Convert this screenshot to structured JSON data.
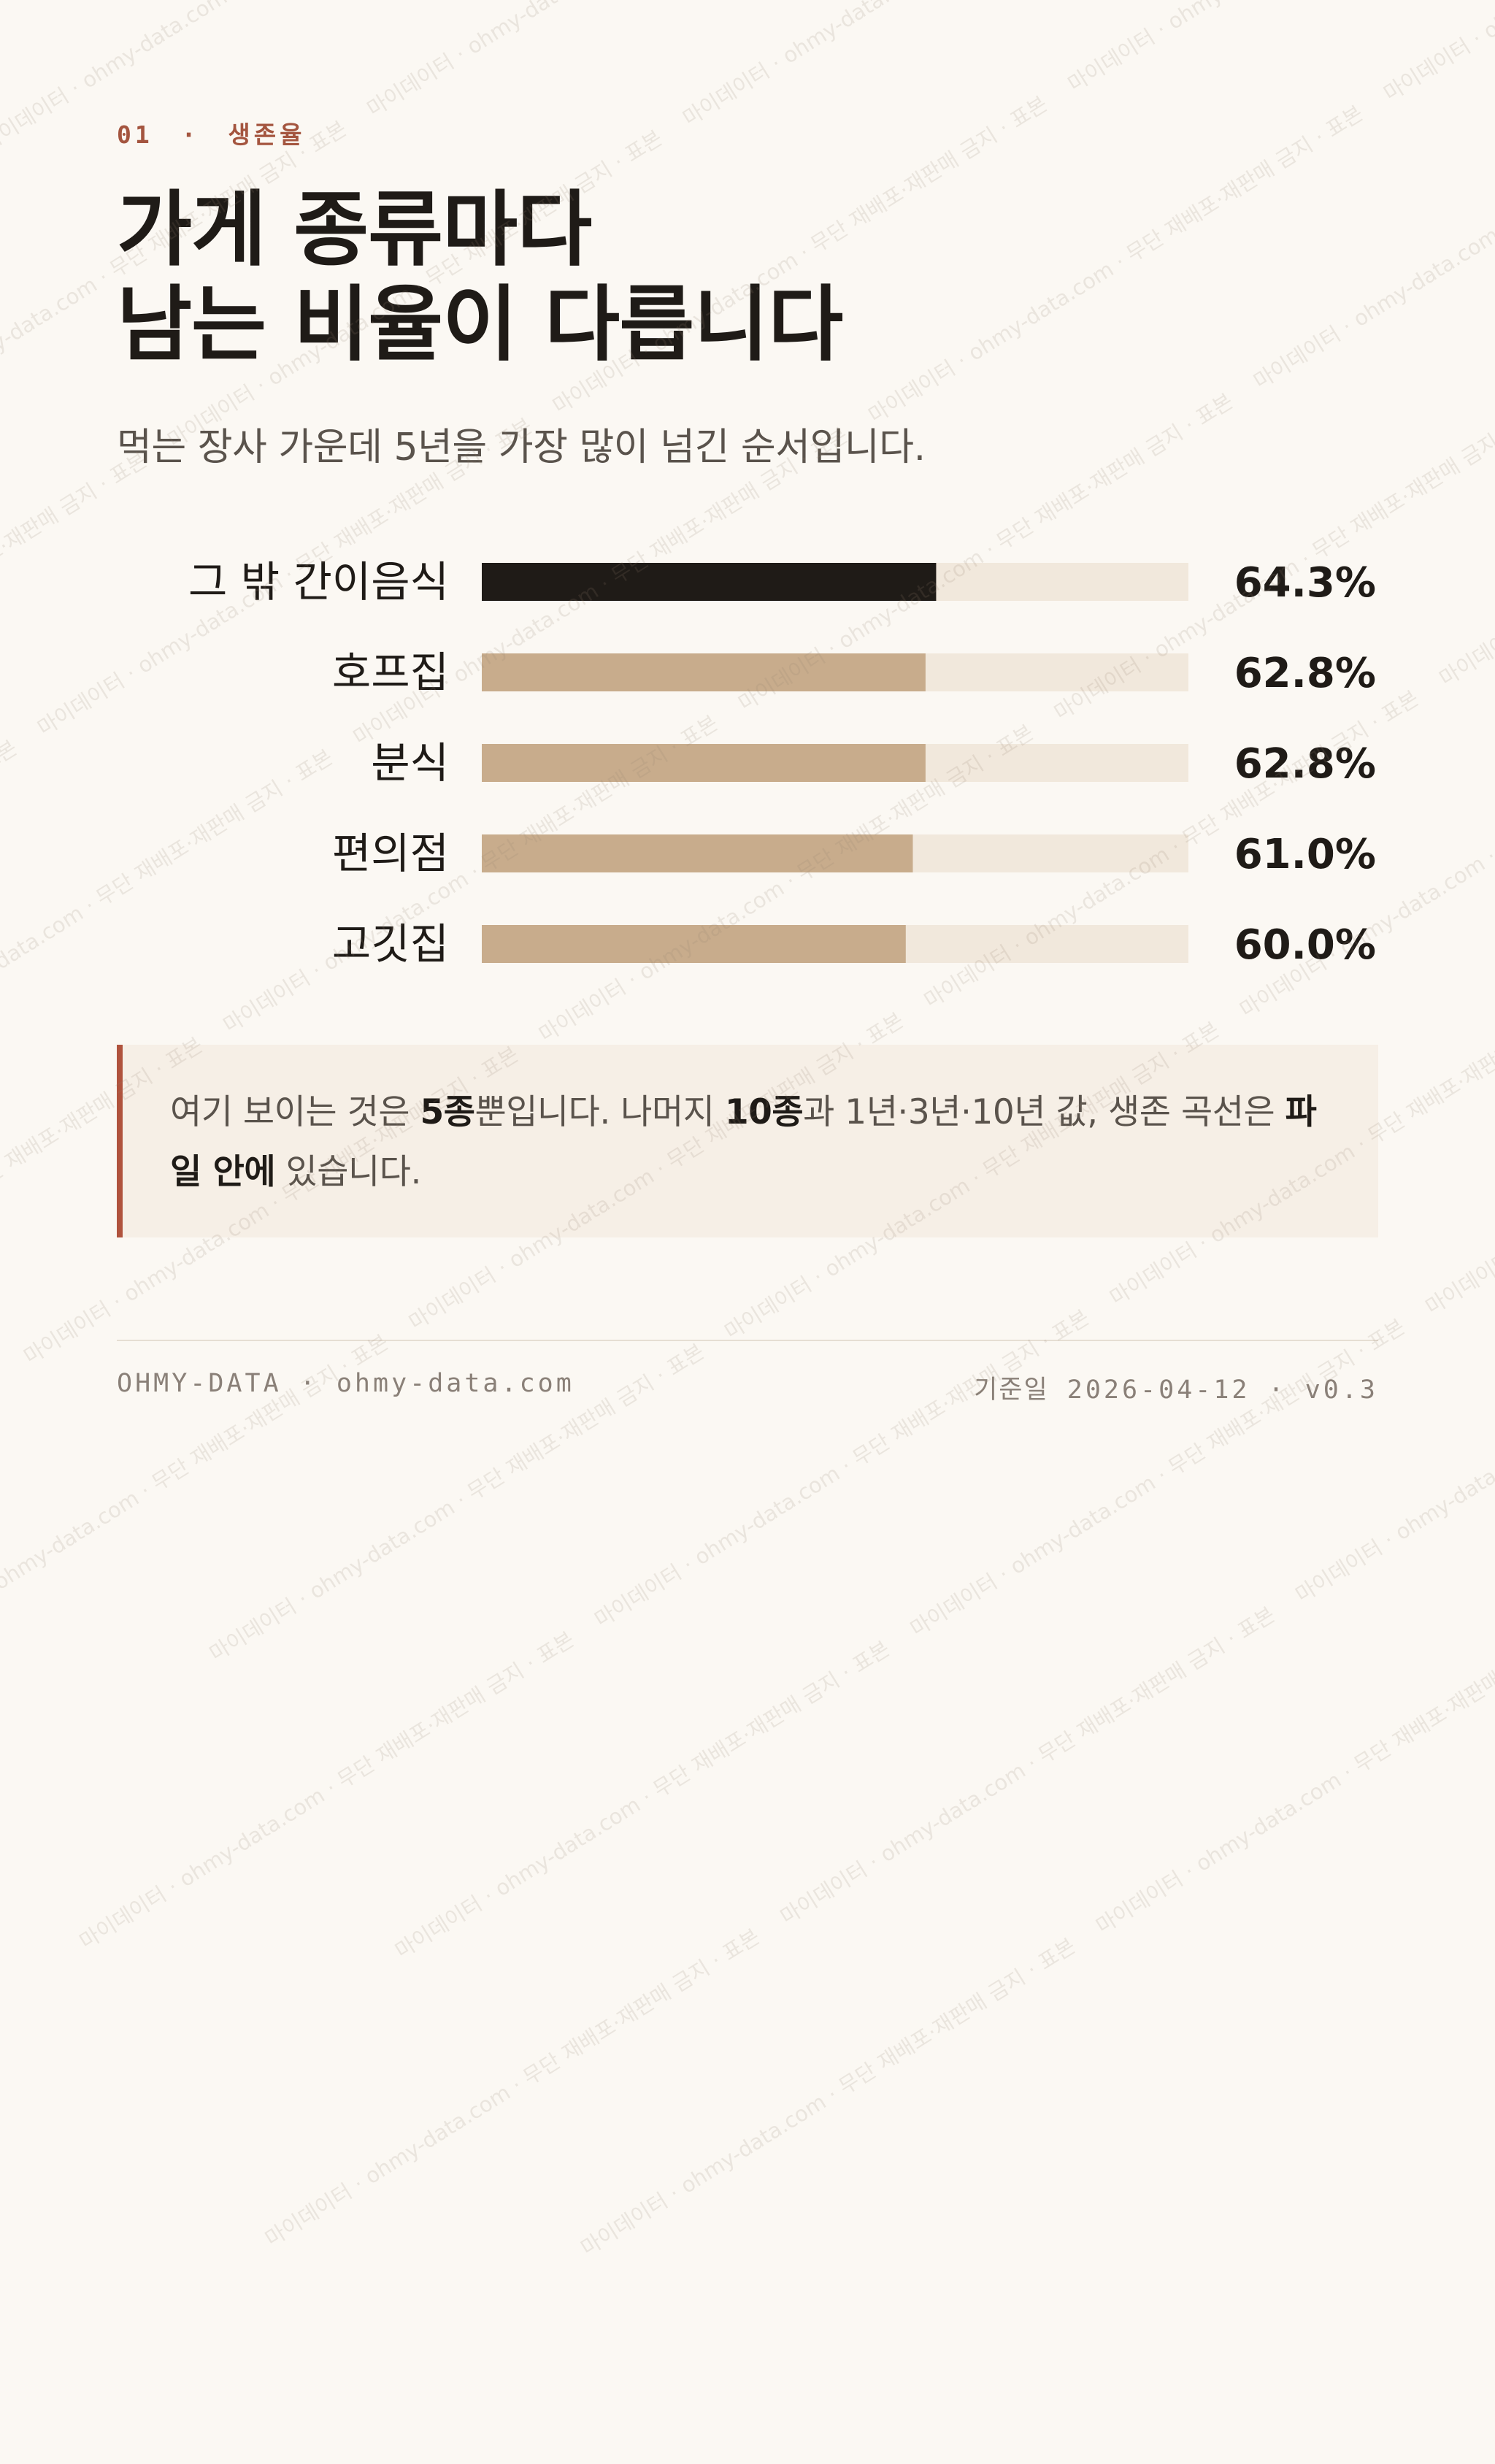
{
  "eyebrow": {
    "number": "01",
    "separator": "·",
    "label": "생존율"
  },
  "title": {
    "line1": "가게 종류마다",
    "line2": "남는 비율이 다릅니다"
  },
  "subtitle": "먹는 장사 가운데 5년을 가장 많이 넘긴 순서입니다.",
  "chart_data": {
    "type": "bar",
    "orientation": "horizontal",
    "categories": [
      "그 밖 간이음식",
      "호프집",
      "분식",
      "편의점",
      "고깃집"
    ],
    "values": [
      64.3,
      62.8,
      62.8,
      61.0,
      60.0
    ],
    "value_labels": [
      "64.3%",
      "62.8%",
      "62.8%",
      "61.0%",
      "60.0%"
    ],
    "xlim": [
      0,
      100
    ],
    "highlight_index": 0,
    "colors": {
      "highlight": "#1f1b17",
      "bar": "#c8ac8c",
      "track": "#f1e8dc"
    }
  },
  "callout": {
    "t1": "여기 보이는 것은 ",
    "b1": "5종",
    "t2": "뿐입니다. 나머지 ",
    "b2": "10종",
    "t3": "과 1년·3년·10년 값, 생존 곡선은 ",
    "b3": "파일 안에",
    "t4": " 있습니다."
  },
  "footer": {
    "left": "OHMY-DATA · ohmy-data.com",
    "date_label": "기준일",
    "date_value": "2026-04-12 · v0.3"
  },
  "watermark": "마이데이터 · ohmy-data.com · 무단 재배포·재판매 금지 · 표본",
  "colors": {
    "accent": "#a4553f",
    "background": "#fbf8f3",
    "text": "#1f1b17",
    "muted": "#5a534c"
  }
}
